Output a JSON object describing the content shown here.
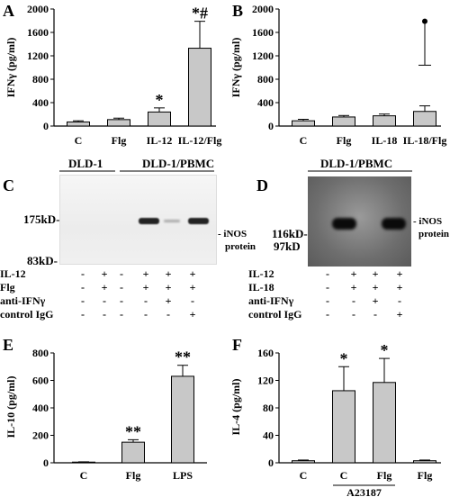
{
  "panels": {
    "A": "A",
    "B": "B",
    "C": "C",
    "D": "D",
    "E": "E",
    "F": "F"
  },
  "chart_data": [
    {
      "panel": "A",
      "type": "bar",
      "ylabel": "IFNγ (pg/ml)",
      "yticks": [
        "0",
        "400",
        "800",
        "1200",
        "1600",
        "2000"
      ],
      "ylim": [
        0,
        2000
      ],
      "categories": [
        "C",
        "Flg",
        "IL-12",
        "IL-12/Flg"
      ],
      "values": [
        70,
        110,
        240,
        1330
      ],
      "errors": [
        20,
        25,
        70,
        460
      ],
      "annotations": [
        "",
        "",
        "*",
        "*#"
      ]
    },
    {
      "panel": "B",
      "type": "bar",
      "ylabel": "IFNγ (pg/ml)",
      "yticks": [
        "0",
        "400",
        "800",
        "1200",
        "1600",
        "2000"
      ],
      "ylim": [
        0,
        2000
      ],
      "categories": [
        "C",
        "Flg",
        "IL-18",
        "IL-18/Flg"
      ],
      "values": [
        90,
        155,
        175,
        250
      ],
      "errors": [
        25,
        25,
        30,
        95
      ],
      "extra_point": {
        "category": "IL-18/Flg",
        "low": 1040,
        "high": 1790
      },
      "annotations": [
        "",
        "",
        "",
        ""
      ]
    },
    {
      "panel": "E",
      "type": "bar",
      "ylabel": "IL-10 (pg/ml)",
      "yticks": [
        "0",
        "200",
        "400",
        "600",
        "800"
      ],
      "ylim": [
        0,
        800
      ],
      "categories": [
        "C",
        "Flg",
        "LPS"
      ],
      "values": [
        5,
        150,
        630
      ],
      "errors": [
        2,
        18,
        80
      ],
      "annotations": [
        "",
        "**",
        "**"
      ]
    },
    {
      "panel": "F",
      "type": "bar",
      "ylabel": "IL-4 (pg/ml)",
      "yticks": [
        "0",
        "40",
        "80",
        "120",
        "160"
      ],
      "ylim": [
        0,
        160
      ],
      "categories": [
        "C",
        "C",
        "Flg",
        "Flg"
      ],
      "group_label": "A23187",
      "values": [
        3,
        105,
        117,
        3
      ],
      "errors": [
        1,
        35,
        35,
        1
      ],
      "annotations": [
        "",
        "*",
        "*",
        ""
      ]
    }
  ],
  "blot_c": {
    "header_left": "DLD-1",
    "header_right": "DLD-1/PBMC",
    "marker_top": "175kD-",
    "marker_bottom": "83kD-",
    "band_label_1": "- iNOS",
    "band_label_2": "protein",
    "rows": [
      {
        "label": "IL-12",
        "signs": [
          "-",
          "+",
          "-",
          "+",
          "+",
          "+"
        ]
      },
      {
        "label": "Flg",
        "signs": [
          "-",
          "+",
          "-",
          "+",
          "+",
          "+"
        ]
      },
      {
        "label": "anti-IFNγ",
        "signs": [
          "-",
          "-",
          "-",
          "-",
          "+",
          "-"
        ]
      },
      {
        "label": "control IgG",
        "signs": [
          "-",
          "-",
          "-",
          "-",
          "-",
          "+"
        ]
      }
    ]
  },
  "blot_d": {
    "header": "DLD-1/PBMC",
    "marker_top": "116kD-",
    "marker_bottom": "97kD",
    "band_label_1": "- iNOS",
    "band_label_2": "protein",
    "rows": [
      {
        "label": "IL-12",
        "signs": [
          "-",
          "+",
          "+",
          "+"
        ]
      },
      {
        "label": "IL-18",
        "signs": [
          "-",
          "+",
          "+",
          "+"
        ]
      },
      {
        "label": "anti-IFNγ",
        "signs": [
          "-",
          "-",
          "+",
          "-"
        ]
      },
      {
        "label": "control IgG",
        "signs": [
          "-",
          "-",
          "-",
          "+"
        ]
      }
    ]
  }
}
